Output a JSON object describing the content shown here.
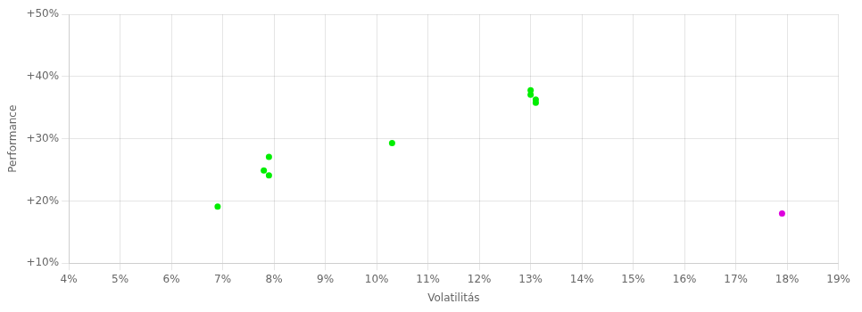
{
  "chart_data": {
    "type": "scatter",
    "xlabel": "Volatilitás",
    "ylabel": "Performance",
    "series": [
      {
        "color": "#00ee00",
        "x": [
          0.069,
          0.078,
          0.079,
          0.079,
          0.103,
          0.13,
          0.13,
          0.131,
          0.131
        ],
        "values": [
          0.191,
          0.249,
          0.241,
          0.271,
          0.293,
          0.371,
          0.378,
          0.363,
          0.358
        ]
      },
      {
        "color": "#dd00dd",
        "x": [
          0.179
        ],
        "values": [
          0.18
        ]
      }
    ],
    "xlim": [
      0.04,
      0.19
    ],
    "ylim": [
      0.1,
      0.5
    ],
    "xticks": [
      {
        "value": 0.04,
        "label": "4%"
      },
      {
        "value": 0.05,
        "label": "5%"
      },
      {
        "value": 0.06,
        "label": "6%"
      },
      {
        "value": 0.07,
        "label": "7%"
      },
      {
        "value": 0.08,
        "label": "8%"
      },
      {
        "value": 0.09,
        "label": "9%"
      },
      {
        "value": 0.1,
        "label": "10%"
      },
      {
        "value": 0.11,
        "label": "11%"
      },
      {
        "value": 0.12,
        "label": "12%"
      },
      {
        "value": 0.13,
        "label": "13%"
      },
      {
        "value": 0.14,
        "label": "14%"
      },
      {
        "value": 0.15,
        "label": "15%"
      },
      {
        "value": 0.16,
        "label": "16%"
      },
      {
        "value": 0.17,
        "label": "17%"
      },
      {
        "value": 0.18,
        "label": "18%"
      },
      {
        "value": 0.19,
        "label": "19%"
      }
    ],
    "yticks": [
      {
        "value": 0.1,
        "label": "+10%"
      },
      {
        "value": 0.2,
        "label": "+20%"
      },
      {
        "value": 0.3,
        "label": "+30%"
      },
      {
        "value": 0.4,
        "label": "+40%"
      },
      {
        "value": 0.5,
        "label": "+50%"
      }
    ],
    "grid": true
  }
}
